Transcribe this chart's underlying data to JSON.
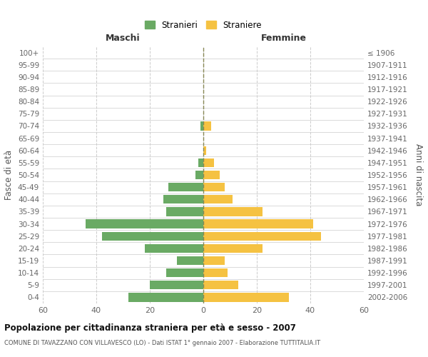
{
  "age_groups_bottom_to_top": [
    "0-4",
    "5-9",
    "10-14",
    "15-19",
    "20-24",
    "25-29",
    "30-34",
    "35-39",
    "40-44",
    "45-49",
    "50-54",
    "55-59",
    "60-64",
    "65-69",
    "70-74",
    "75-79",
    "80-84",
    "85-89",
    "90-94",
    "95-99",
    "100+"
  ],
  "birth_years_bottom_to_top": [
    "2002-2006",
    "1997-2001",
    "1992-1996",
    "1987-1991",
    "1982-1986",
    "1977-1981",
    "1972-1976",
    "1967-1971",
    "1962-1966",
    "1957-1961",
    "1952-1956",
    "1947-1951",
    "1942-1946",
    "1937-1941",
    "1932-1936",
    "1927-1931",
    "1922-1926",
    "1917-1921",
    "1912-1916",
    "1907-1911",
    "≤ 1906"
  ],
  "maschi_bottom_to_top": [
    28,
    20,
    14,
    10,
    22,
    38,
    44,
    14,
    15,
    13,
    3,
    2,
    0,
    0,
    1,
    0,
    0,
    0,
    0,
    0,
    0
  ],
  "femmine_bottom_to_top": [
    32,
    13,
    9,
    8,
    22,
    44,
    41,
    22,
    11,
    8,
    6,
    4,
    1,
    0,
    3,
    0,
    0,
    0,
    0,
    0,
    0
  ],
  "color_maschi": "#6aaa64",
  "color_femmine": "#f5c242",
  "title": "Popolazione per cittadinanza straniera per età e sesso - 2007",
  "subtitle": "COMUNE DI TAVAZZANO CON VILLAVESCO (LO) - Dati ISTAT 1° gennaio 2007 - Elaborazione TUTTITALIA.IT",
  "xlabel_left": "Maschi",
  "xlabel_right": "Femmine",
  "ylabel_left": "Fasce di età",
  "ylabel_right": "Anni di nascita",
  "legend_maschi": "Stranieri",
  "legend_femmine": "Straniere",
  "xlim": 60,
  "background_color": "#ffffff",
  "grid_color": "#cccccc"
}
